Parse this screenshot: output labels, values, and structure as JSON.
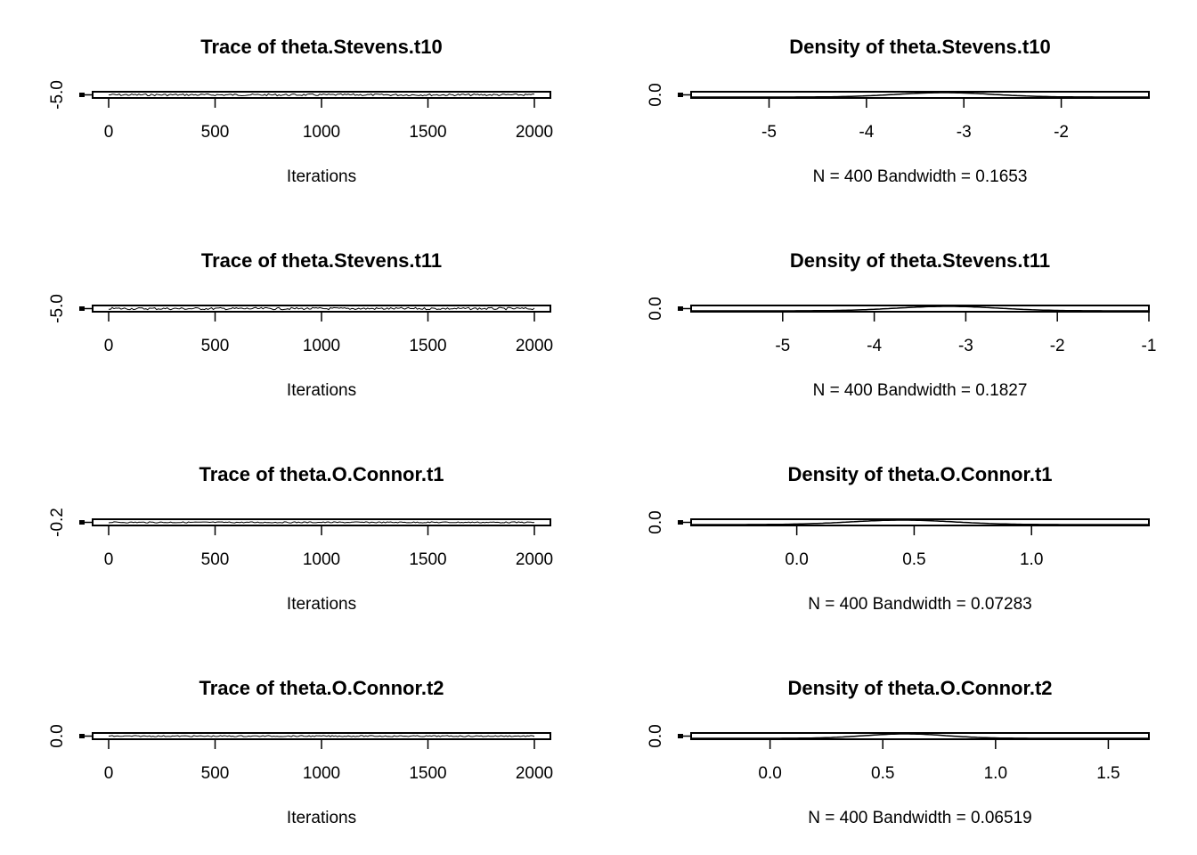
{
  "chart_data": [
    {
      "type": "line",
      "panel": "trace",
      "title": "Trace of theta.Stevens.t10",
      "xlabel": "Iterations",
      "xticks": [
        "0",
        "500",
        "1000",
        "1500",
        "2000"
      ],
      "xtick_values": [
        0,
        500,
        1000,
        1500,
        2000
      ],
      "yticks": [
        "-5.0"
      ],
      "xlim": [
        0,
        2000
      ],
      "level": -3.2,
      "spread": 0.35
    },
    {
      "type": "area",
      "panel": "density",
      "title": "Density of theta.Stevens.t10",
      "subtitle": "N = 400   Bandwidth = 0.1653",
      "xticks": [
        "-5",
        "-4",
        "-3",
        "-2"
      ],
      "xtick_values": [
        -5,
        -4,
        -3,
        -2
      ],
      "yticks": [
        "0.0"
      ],
      "xlim": [
        -5.8,
        -1.1
      ],
      "mode": -3.2,
      "sd": 0.5
    },
    {
      "type": "line",
      "panel": "trace",
      "title": "Trace of theta.Stevens.t11",
      "xlabel": "Iterations",
      "xticks": [
        "0",
        "500",
        "1000",
        "1500",
        "2000"
      ],
      "xtick_values": [
        0,
        500,
        1000,
        1500,
        2000
      ],
      "yticks": [
        "-5.0"
      ],
      "xlim": [
        0,
        2000
      ],
      "level": -3.1,
      "spread": 0.4
    },
    {
      "type": "area",
      "panel": "density",
      "title": "Density of theta.Stevens.t11",
      "subtitle": "N = 400   Bandwidth = 0.1827",
      "xticks": [
        "-5",
        "-4",
        "-3",
        "-2",
        "-1"
      ],
      "xtick_values": [
        -5,
        -4,
        -3,
        -2,
        -1
      ],
      "yticks": [
        "0.0"
      ],
      "xlim": [
        -6.0,
        -1.0
      ],
      "mode": -3.2,
      "sd": 0.55
    },
    {
      "type": "line",
      "panel": "trace",
      "title": "Trace of theta.O.Connor.t1",
      "xlabel": "Iterations",
      "xticks": [
        "0",
        "500",
        "1000",
        "1500",
        "2000"
      ],
      "xtick_values": [
        0,
        500,
        1000,
        1500,
        2000
      ],
      "yticks": [
        "-0.2"
      ],
      "xlim": [
        0,
        2000
      ],
      "level": 0.5,
      "spread": 0.2
    },
    {
      "type": "area",
      "panel": "density",
      "title": "Density of theta.O.Connor.t1",
      "subtitle": "N = 400   Bandwidth = 0.07283",
      "xticks": [
        "0.0",
        "0.5",
        "1.0"
      ],
      "xtick_values": [
        0.0,
        0.5,
        1.0
      ],
      "yticks": [
        "0.0"
      ],
      "xlim": [
        -0.45,
        1.5
      ],
      "mode": 0.45,
      "sd": 0.22
    },
    {
      "type": "line",
      "panel": "trace",
      "title": "Trace of theta.O.Connor.t2",
      "xlabel": "Iterations",
      "xticks": [
        "0",
        "500",
        "1000",
        "1500",
        "2000"
      ],
      "xtick_values": [
        0,
        500,
        1000,
        1500,
        2000
      ],
      "yticks": [
        "0.0"
      ],
      "xlim": [
        0,
        2000
      ],
      "level": 0.6,
      "spread": 0.2
    },
    {
      "type": "area",
      "panel": "density",
      "title": "Density of theta.O.Connor.t2",
      "subtitle": "N = 400   Bandwidth = 0.06519",
      "xticks": [
        "0.0",
        "0.5",
        "1.0",
        "1.5"
      ],
      "xtick_values": [
        0.0,
        0.5,
        1.0,
        1.5
      ],
      "yticks": [
        "0.0"
      ],
      "xlim": [
        -0.35,
        1.68
      ],
      "mode": 0.6,
      "sd": 0.18
    }
  ]
}
